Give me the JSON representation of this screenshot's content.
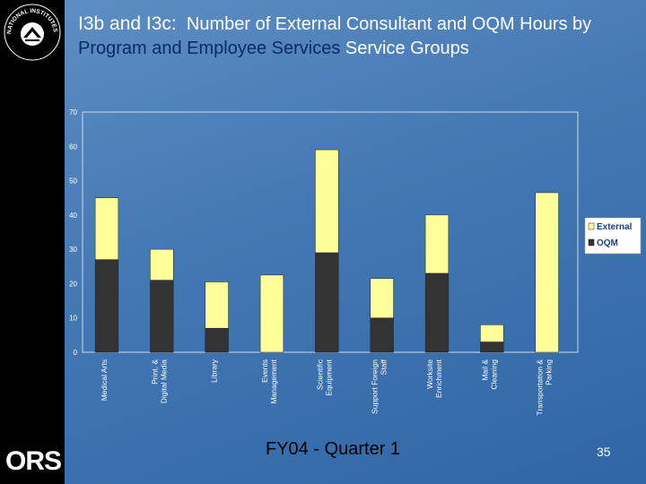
{
  "title": {
    "lead": "I3b and I3c:",
    "part1": "Number of External Consultant and OQM Hours by",
    "highlight": "Program and Employee Services",
    "part2": "Service Groups"
  },
  "logo": {
    "nih_text": "NATIONAL INSTITUTES OF HEALTH",
    "ors_text": "ORS",
    "icon": "nih-logo-icon"
  },
  "footer": {
    "text": "FY04 - Quarter 1"
  },
  "page_number": "35",
  "colors": {
    "oqm": "#333333",
    "external": "#ffff99",
    "background": "#4478b3"
  },
  "chart_data": {
    "type": "bar",
    "stacked": true,
    "categories": [
      "Medical Arts",
      "Print. & Digital Media",
      "Library",
      "Events Management",
      "Scientific Equipment",
      "Support Foreign Staff",
      "Worksite Enrichment",
      "Mail & Cleaning",
      "Transportation & Parking"
    ],
    "series": [
      {
        "name": "OQM",
        "values": [
          27,
          21,
          7,
          0,
          29,
          10,
          23,
          3,
          0
        ]
      },
      {
        "name": "External",
        "values": [
          18,
          9,
          13.5,
          22.5,
          30,
          11.5,
          17,
          5,
          46.5
        ]
      }
    ],
    "ylim": [
      0,
      70
    ],
    "yticks": [
      0,
      10,
      20,
      30,
      40,
      50,
      60,
      70
    ],
    "legend": "right",
    "grid": false
  }
}
